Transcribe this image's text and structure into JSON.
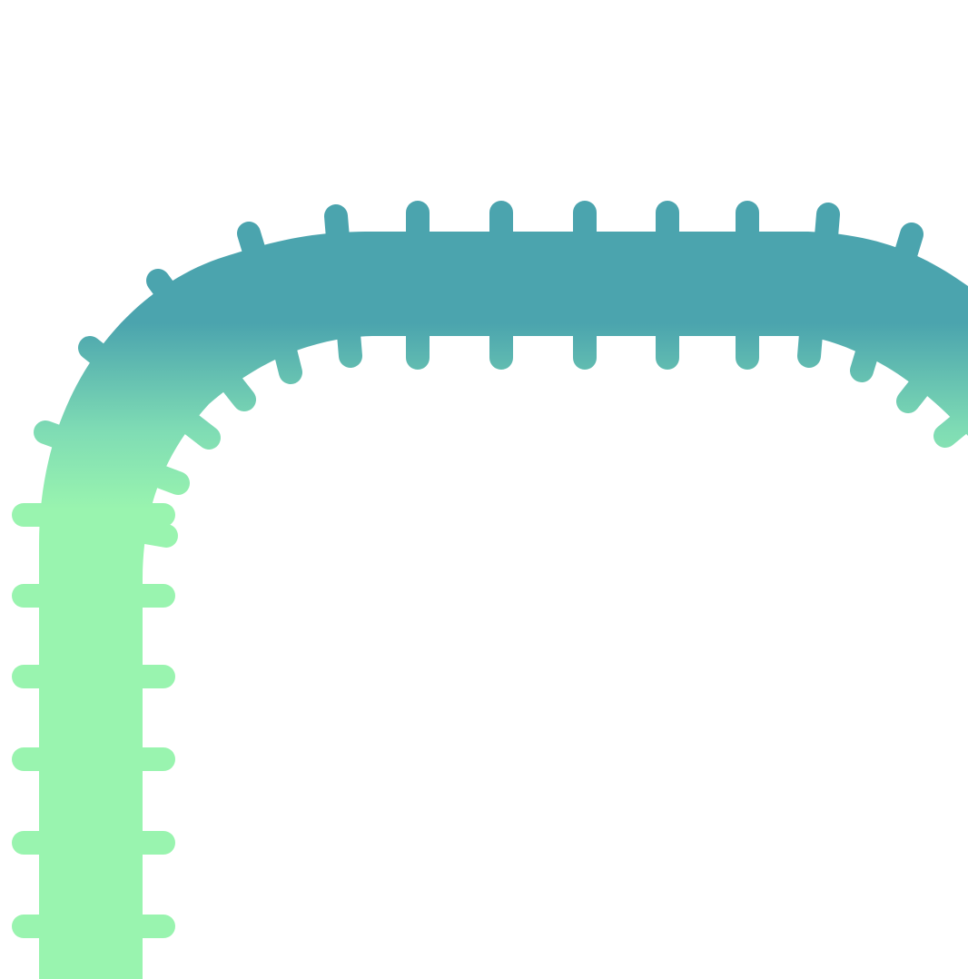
{
  "graphic": {
    "subject": "track-bend",
    "colors": {
      "background": "#ffffff",
      "teal": "#4ba4ae",
      "mint": "#99f4af",
      "mid": "#7fdcb4"
    }
  }
}
